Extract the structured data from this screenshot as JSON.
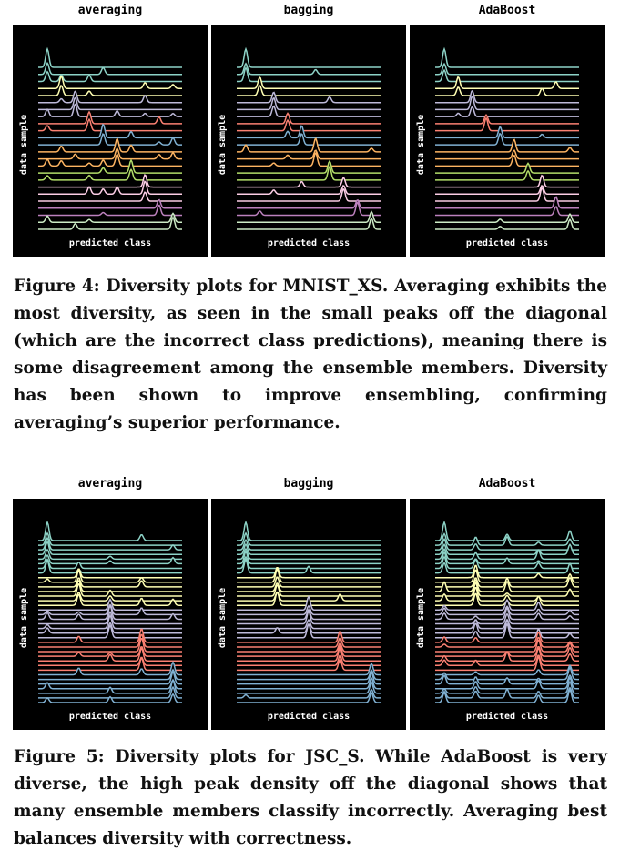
{
  "figure4": {
    "panels": [
      {
        "title": "averaging",
        "xlabel": "predicted class",
        "ylabel": "data sample"
      },
      {
        "title": "bagging",
        "xlabel": "predicted class",
        "ylabel": "data sample"
      },
      {
        "title": "AdaBoost",
        "xlabel": "predicted class",
        "ylabel": "data sample"
      }
    ],
    "caption": "Figure 4: Diversity plots for MNIST_XS. Averaging exhibits the most diversity, as seen in the small peaks off the diagonal (which are the incorrect class predictions), meaning there is some disagreement among the ensemble members. Diversity has been shown to improve ensembling, confirming averaging’s superior performance."
  },
  "figure5": {
    "panels": [
      {
        "title": "averaging",
        "xlabel": "predicted class",
        "ylabel": "data sample"
      },
      {
        "title": "bagging",
        "xlabel": "predicted class",
        "ylabel": "data sample"
      },
      {
        "title": "AdaBoost",
        "xlabel": "predicted class",
        "ylabel": "data sample"
      }
    ],
    "caption": "Figure 5: Diversity plots for JSC_S. While AdaBoost is very diverse, the high peak density off the diagonal shows that many ensemble members classify incorrectly. Averaging best balances diversity with correctness."
  },
  "chart_data": [
    {
      "type": "ridgeline",
      "title": "averaging",
      "xlabel": "predicted class",
      "ylabel": "data sample",
      "n_classes": 10,
      "rows": 24,
      "diagonal_peaks": true,
      "off_diagonal_peaks": "few small"
    },
    {
      "type": "ridgeline",
      "title": "bagging",
      "xlabel": "predicted class",
      "ylabel": "data sample",
      "n_classes": 10,
      "rows": 24,
      "diagonal_peaks": true,
      "off_diagonal_peaks": "rare"
    },
    {
      "type": "ridgeline",
      "title": "AdaBoost",
      "xlabel": "predicted class",
      "ylabel": "data sample",
      "n_classes": 10,
      "rows": 24,
      "diagonal_peaks": true,
      "off_diagonal_peaks": "rare"
    },
    {
      "type": "ridgeline",
      "title": "averaging",
      "xlabel": "predicted class",
      "ylabel": "data sample",
      "n_classes": 5,
      "rows": 36,
      "diagonal_peaks": true,
      "off_diagonal_peaks": "moderate"
    },
    {
      "type": "ridgeline",
      "title": "bagging",
      "xlabel": "predicted class",
      "ylabel": "data sample",
      "n_classes": 5,
      "rows": 36,
      "diagonal_peaks": true,
      "off_diagonal_peaks": "rare"
    },
    {
      "type": "ridgeline",
      "title": "AdaBoost",
      "xlabel": "predicted class",
      "ylabel": "data sample",
      "n_classes": 5,
      "rows": 36,
      "diagonal_peaks": true,
      "off_diagonal_peaks": "dense"
    }
  ],
  "colors": {
    "background": "#000000",
    "palette": [
      "#8dd3c7",
      "#ffffb3",
      "#bebada",
      "#fb8072",
      "#80b1d3",
      "#fdb462",
      "#b3de69",
      "#fccde5",
      "#bc80bd",
      "#ccebc5"
    ]
  }
}
